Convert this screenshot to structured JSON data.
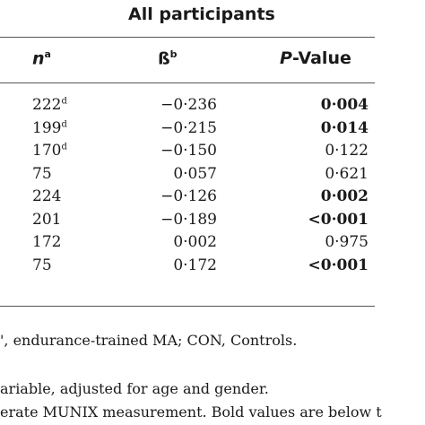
{
  "table": {
    "group_title": "All participants",
    "headers": {
      "n": {
        "text": "n",
        "sup": "a"
      },
      "beta": {
        "text": "ß",
        "sup": "b"
      },
      "p": {
        "italic": "P",
        "rest": "-Value"
      }
    },
    "rows": [
      {
        "n": "222",
        "n_sup": "d",
        "beta": "−0·236",
        "p": "0·004",
        "p_bold": true
      },
      {
        "n": "199",
        "n_sup": "d",
        "beta": "−0·215",
        "p": "0·014",
        "p_bold": true
      },
      {
        "n": "170",
        "n_sup": "d",
        "beta": "−0·150",
        "p": "0·122",
        "p_bold": false
      },
      {
        "n": "75",
        "n_sup": "",
        "beta": "0·057",
        "p": "0·621",
        "p_bold": false
      },
      {
        "n": "224",
        "n_sup": "",
        "beta": "−0·126",
        "p": "0·002",
        "p_bold": true
      },
      {
        "n": "201",
        "n_sup": "",
        "beta": "−0·189",
        "p": "<0·001",
        "p_bold": true
      },
      {
        "n": "172",
        "n_sup": "",
        "beta": "0·002",
        "p": "0·975",
        "p_bold": false
      },
      {
        "n": "75",
        "n_sup": "",
        "beta": "0·172",
        "p": "<0·001",
        "p_bold": true
      }
    ]
  },
  "footnotes": [
    "', endurance-trained MA; CON, Controls.",
    "ariable, adjusted for age and gender.",
    "erate MUNIX measurement. Bold values are below t"
  ]
}
